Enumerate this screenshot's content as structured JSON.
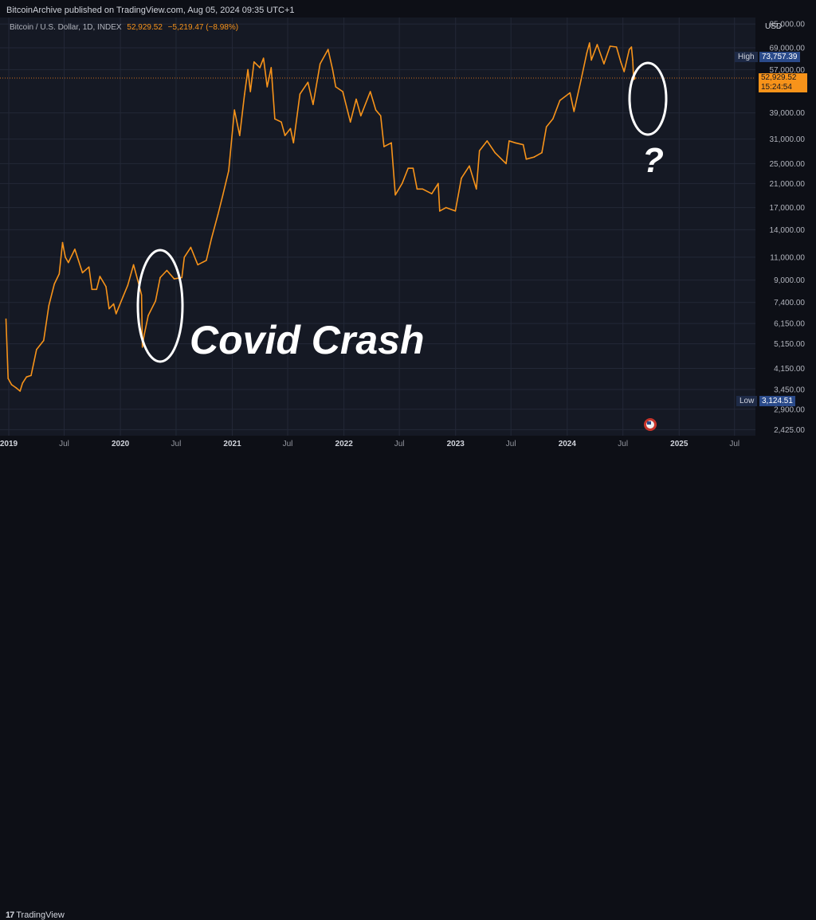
{
  "header": {
    "publisher_line": "BitcoinArchive published on TradingView.com, Aug 05, 2024 09:35 UTC+1"
  },
  "symbol": {
    "name": "Bitcoin / U.S. Dollar, 1D, INDEX",
    "last": "52,929.52",
    "change": "−5,219.47 (−8.98%)"
  },
  "price_axis": {
    "currency": "USD",
    "high_label": "High",
    "high_value": "73,757.39",
    "low_label": "Low",
    "low_value": "3,124.51",
    "last_price": "52,929.52",
    "countdown": "15:24:54"
  },
  "annotations": {
    "covid": "Covid Crash",
    "question": "?"
  },
  "footer": {
    "brand": "TradingView"
  },
  "colors": {
    "line": "#f7931a",
    "background": "#151924",
    "grid": "#232837",
    "annotation": "#ffffff"
  },
  "chart_data": {
    "type": "line",
    "title": "",
    "xlabel": "",
    "ylabel": "",
    "y_scale": "log",
    "ylim": [
      2300,
      90000
    ],
    "xlim": [
      "2019-01-01",
      "2025-12-31"
    ],
    "grid": true,
    "x_ticks": [
      {
        "date": "2019-01-01",
        "label": "2019",
        "major": true
      },
      {
        "date": "2019-07-01",
        "label": "Jul",
        "major": false
      },
      {
        "date": "2020-01-01",
        "label": "2020",
        "major": true
      },
      {
        "date": "2020-07-01",
        "label": "Jul",
        "major": false
      },
      {
        "date": "2021-01-01",
        "label": "2021",
        "major": true
      },
      {
        "date": "2021-07-01",
        "label": "Jul",
        "major": false
      },
      {
        "date": "2022-01-01",
        "label": "2022",
        "major": true
      },
      {
        "date": "2022-07-01",
        "label": "Jul",
        "major": false
      },
      {
        "date": "2023-01-01",
        "label": "2023",
        "major": true
      },
      {
        "date": "2023-07-01",
        "label": "Jul",
        "major": false
      },
      {
        "date": "2024-01-01",
        "label": "2024",
        "major": true
      },
      {
        "date": "2024-07-01",
        "label": "Jul",
        "major": false
      },
      {
        "date": "2025-01-01",
        "label": "2025",
        "major": true
      },
      {
        "date": "2025-07-01",
        "label": "Jul",
        "major": false
      }
    ],
    "y_ticks": [
      {
        "value": 85000,
        "label": "85,000.00"
      },
      {
        "value": 69000,
        "label": "69,000.00"
      },
      {
        "value": 57000,
        "label": "57,000.00"
      },
      {
        "value": 39000,
        "label": "39,000.00"
      },
      {
        "value": 31000,
        "label": "31,000.00"
      },
      {
        "value": 25000,
        "label": "25,000.00"
      },
      {
        "value": 21000,
        "label": "21,000.00"
      },
      {
        "value": 17000,
        "label": "17,000.00"
      },
      {
        "value": 14000,
        "label": "14,000.00"
      },
      {
        "value": 11000,
        "label": "11,000.00"
      },
      {
        "value": 9000,
        "label": "9,000.00"
      },
      {
        "value": 7400,
        "label": "7,400.00"
      },
      {
        "value": 6150,
        "label": "6,150.00"
      },
      {
        "value": 5150,
        "label": "5,150.00"
      },
      {
        "value": 4150,
        "label": "4,150.00"
      },
      {
        "value": 3450,
        "label": "3,450.00"
      },
      {
        "value": 2900,
        "label": "2,900.00"
      },
      {
        "value": 2425,
        "label": "2,425.00"
      }
    ],
    "last_price": 52929.52,
    "series": [
      {
        "values": [
          [
            "2018-12-23",
            6400
          ],
          [
            "2018-12-30",
            3800
          ],
          [
            "2019-01-10",
            3600
          ],
          [
            "2019-01-25",
            3500
          ],
          [
            "2019-02-07",
            3400
          ],
          [
            "2019-02-15",
            3650
          ],
          [
            "2019-02-28",
            3850
          ],
          [
            "2019-03-15",
            3900
          ],
          [
            "2019-04-02",
            4900
          ],
          [
            "2019-04-25",
            5300
          ],
          [
            "2019-05-12",
            7200
          ],
          [
            "2019-05-30",
            8700
          ],
          [
            "2019-06-15",
            9500
          ],
          [
            "2019-06-26",
            12500
          ],
          [
            "2019-07-05",
            11000
          ],
          [
            "2019-07-15",
            10500
          ],
          [
            "2019-08-05",
            11800
          ],
          [
            "2019-08-30",
            9600
          ],
          [
            "2019-09-20",
            10100
          ],
          [
            "2019-09-30",
            8300
          ],
          [
            "2019-10-15",
            8300
          ],
          [
            "2019-10-26",
            9300
          ],
          [
            "2019-11-15",
            8500
          ],
          [
            "2019-11-25",
            7000
          ],
          [
            "2019-12-10",
            7300
          ],
          [
            "2019-12-18",
            6700
          ],
          [
            "2020-01-10",
            7800
          ],
          [
            "2020-01-25",
            8600
          ],
          [
            "2020-02-13",
            10300
          ],
          [
            "2020-03-01",
            8700
          ],
          [
            "2020-03-10",
            7900
          ],
          [
            "2020-03-13",
            5000
          ],
          [
            "2020-03-18",
            5500
          ],
          [
            "2020-04-01",
            6600
          ],
          [
            "2020-04-25",
            7500
          ],
          [
            "2020-05-10",
            9200
          ],
          [
            "2020-06-01",
            9800
          ],
          [
            "2020-06-25",
            9100
          ],
          [
            "2020-07-20",
            9200
          ],
          [
            "2020-07-28",
            11000
          ],
          [
            "2020-08-18",
            12000
          ],
          [
            "2020-09-10",
            10300
          ],
          [
            "2020-10-08",
            10700
          ],
          [
            "2020-10-25",
            13000
          ],
          [
            "2020-11-15",
            16000
          ],
          [
            "2020-12-01",
            19000
          ],
          [
            "2020-12-20",
            23500
          ],
          [
            "2021-01-08",
            40000
          ],
          [
            "2021-01-25",
            32000
          ],
          [
            "2021-02-10",
            46000
          ],
          [
            "2021-02-21",
            57000
          ],
          [
            "2021-03-01",
            47000
          ],
          [
            "2021-03-13",
            61000
          ],
          [
            "2021-04-01",
            58000
          ],
          [
            "2021-04-13",
            63000
          ],
          [
            "2021-04-25",
            49000
          ],
          [
            "2021-05-08",
            58000
          ],
          [
            "2021-05-20",
            37000
          ],
          [
            "2021-06-10",
            36000
          ],
          [
            "2021-06-22",
            32000
          ],
          [
            "2021-07-10",
            34000
          ],
          [
            "2021-07-20",
            30000
          ],
          [
            "2021-08-10",
            46000
          ],
          [
            "2021-09-05",
            51000
          ],
          [
            "2021-09-22",
            42000
          ],
          [
            "2021-10-15",
            60000
          ],
          [
            "2021-11-10",
            68000
          ],
          [
            "2021-11-25",
            57000
          ],
          [
            "2021-12-05",
            49000
          ],
          [
            "2021-12-28",
            47000
          ],
          [
            "2022-01-22",
            36000
          ],
          [
            "2022-02-10",
            44000
          ],
          [
            "2022-02-25",
            38000
          ],
          [
            "2022-03-28",
            47000
          ],
          [
            "2022-04-15",
            40000
          ],
          [
            "2022-05-01",
            38000
          ],
          [
            "2022-05-12",
            29000
          ],
          [
            "2022-06-05",
            30000
          ],
          [
            "2022-06-18",
            19000
          ],
          [
            "2022-07-10",
            21000
          ],
          [
            "2022-07-30",
            24000
          ],
          [
            "2022-08-15",
            24000
          ],
          [
            "2022-08-28",
            20000
          ],
          [
            "2022-09-15",
            20000
          ],
          [
            "2022-10-15",
            19200
          ],
          [
            "2022-11-05",
            21000
          ],
          [
            "2022-11-10",
            16500
          ],
          [
            "2022-12-01",
            17000
          ],
          [
            "2022-12-31",
            16500
          ],
          [
            "2023-01-20",
            22000
          ],
          [
            "2023-02-15",
            24500
          ],
          [
            "2023-03-10",
            20000
          ],
          [
            "2023-03-20",
            28000
          ],
          [
            "2023-04-14",
            30500
          ],
          [
            "2023-05-10",
            27500
          ],
          [
            "2023-06-15",
            25000
          ],
          [
            "2023-06-25",
            30500
          ],
          [
            "2023-07-15",
            30000
          ],
          [
            "2023-08-10",
            29500
          ],
          [
            "2023-08-20",
            26000
          ],
          [
            "2023-09-15",
            26500
          ],
          [
            "2023-10-10",
            27500
          ],
          [
            "2023-10-25",
            34500
          ],
          [
            "2023-11-15",
            37000
          ],
          [
            "2023-12-08",
            43500
          ],
          [
            "2024-01-10",
            46500
          ],
          [
            "2024-01-23",
            39500
          ],
          [
            "2024-02-15",
            52000
          ],
          [
            "2024-03-05",
            66000
          ],
          [
            "2024-03-14",
            72000
          ],
          [
            "2024-03-20",
            62000
          ],
          [
            "2024-04-08",
            71000
          ],
          [
            "2024-04-30",
            60000
          ],
          [
            "2024-05-20",
            70000
          ],
          [
            "2024-06-10",
            69500
          ],
          [
            "2024-06-24",
            61000
          ],
          [
            "2024-07-05",
            56000
          ],
          [
            "2024-07-22",
            68000
          ],
          [
            "2024-07-29",
            69500
          ],
          [
            "2024-08-02",
            62000
          ],
          [
            "2024-08-05",
            52929.52
          ]
        ]
      }
    ]
  }
}
